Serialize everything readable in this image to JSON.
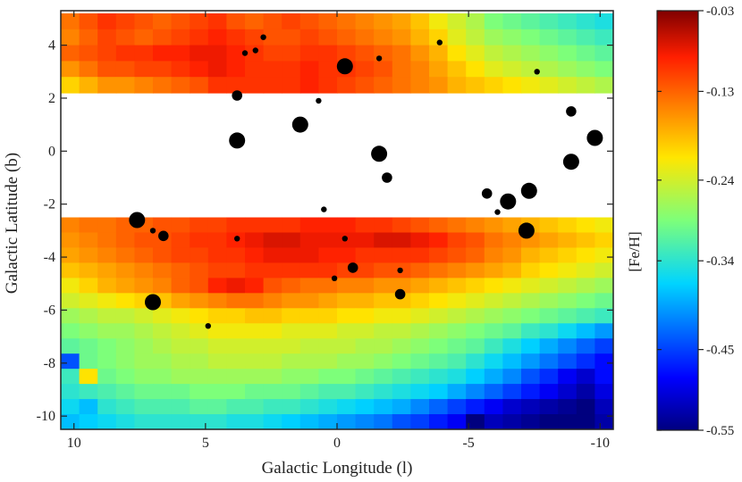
{
  "chart_data": {
    "type": "heatmap",
    "title": "",
    "xlabel": "Galactic Longitude (l)",
    "ylabel": "Galactic Latitude (b)",
    "xlim": [
      10.5,
      -10.5
    ],
    "ylim": [
      -10.5,
      5.3
    ],
    "x_ticks": [
      10,
      5,
      0,
      -5,
      -10
    ],
    "y_ticks": [
      4,
      2,
      0,
      -2,
      -4,
      -6,
      -8,
      -10
    ],
    "grid": false,
    "colorbar": {
      "label": "[Fe/H]",
      "range": [
        -0.55,
        -0.03
      ],
      "ticks": [
        "-0.03",
        "-0.13",
        "-0.24",
        "-0.34",
        "-0.45",
        "-0.55"
      ]
    },
    "heatmap": {
      "cell_size_deg": 0.7,
      "l_start": 10.5,
      "b_top": 5.2,
      "b_bottom": -10.5,
      "masked_b_range": [
        -2.5,
        2.2
      ],
      "upper_rows": [
        [
          -0.14,
          -0.12,
          -0.1,
          -0.11,
          -0.12,
          -0.13,
          -0.12,
          -0.11,
          -0.1,
          -0.12,
          -0.13,
          -0.12,
          -0.11,
          -0.12,
          -0.13,
          -0.14,
          -0.15,
          -0.16,
          -0.17,
          -0.19,
          -0.22,
          -0.24,
          -0.26,
          -0.29,
          -0.3,
          -0.31,
          -0.32,
          -0.33,
          -0.34,
          -0.35
        ],
        [
          -0.15,
          -0.13,
          -0.11,
          -0.12,
          -0.13,
          -0.12,
          -0.11,
          -0.1,
          -0.09,
          -0.1,
          -0.11,
          -0.12,
          -0.12,
          -0.11,
          -0.12,
          -0.13,
          -0.14,
          -0.15,
          -0.16,
          -0.18,
          -0.2,
          -0.23,
          -0.25,
          -0.27,
          -0.28,
          -0.29,
          -0.3,
          -0.31,
          -0.32,
          -0.33
        ],
        [
          -0.13,
          -0.12,
          -0.11,
          -0.1,
          -0.1,
          -0.09,
          -0.09,
          -0.08,
          -0.08,
          -0.09,
          -0.1,
          -0.11,
          -0.11,
          -0.1,
          -0.1,
          -0.11,
          -0.12,
          -0.13,
          -0.14,
          -0.16,
          -0.18,
          -0.21,
          -0.23,
          -0.25,
          -0.26,
          -0.27,
          -0.28,
          -0.29,
          -0.3,
          -0.31
        ],
        [
          -0.16,
          -0.14,
          -0.12,
          -0.12,
          -0.11,
          -0.11,
          -0.1,
          -0.09,
          -0.08,
          -0.09,
          -0.1,
          -0.1,
          -0.1,
          -0.09,
          -0.1,
          -0.1,
          -0.11,
          -0.12,
          -0.14,
          -0.15,
          -0.17,
          -0.19,
          -0.21,
          -0.23,
          -0.24,
          -0.25,
          -0.26,
          -0.27,
          -0.28,
          -0.29
        ],
        [
          -0.2,
          -0.18,
          -0.16,
          -0.16,
          -0.15,
          -0.14,
          -0.13,
          -0.12,
          -0.1,
          -0.1,
          -0.1,
          -0.1,
          -0.1,
          -0.09,
          -0.1,
          -0.11,
          -0.12,
          -0.13,
          -0.14,
          -0.15,
          -0.16,
          -0.18,
          -0.19,
          -0.2,
          -0.21,
          -0.22,
          -0.23,
          -0.24,
          -0.25,
          -0.26
        ]
      ],
      "lower_rows": [
        [
          -0.15,
          -0.14,
          -0.14,
          -0.13,
          -0.13,
          -0.12,
          -0.12,
          -0.11,
          -0.11,
          -0.1,
          -0.1,
          -0.1,
          -0.1,
          -0.09,
          -0.09,
          -0.09,
          -0.1,
          -0.1,
          -0.11,
          -0.12,
          -0.13,
          -0.14,
          -0.15,
          -0.16,
          -0.17,
          -0.18,
          -0.19,
          -0.2,
          -0.21,
          -0.22
        ],
        [
          -0.16,
          -0.15,
          -0.14,
          -0.13,
          -0.12,
          -0.12,
          -0.11,
          -0.1,
          -0.1,
          -0.09,
          -0.08,
          -0.07,
          -0.07,
          -0.08,
          -0.08,
          -0.08,
          -0.08,
          -0.07,
          -0.07,
          -0.08,
          -0.09,
          -0.11,
          -0.12,
          -0.14,
          -0.15,
          -0.16,
          -0.17,
          -0.18,
          -0.19,
          -0.2
        ],
        [
          -0.17,
          -0.16,
          -0.15,
          -0.14,
          -0.13,
          -0.12,
          -0.11,
          -0.11,
          -0.1,
          -0.1,
          -0.09,
          -0.08,
          -0.08,
          -0.08,
          -0.09,
          -0.09,
          -0.1,
          -0.1,
          -0.1,
          -0.1,
          -0.11,
          -0.12,
          -0.13,
          -0.15,
          -0.16,
          -0.18,
          -0.19,
          -0.2,
          -0.21,
          -0.22
        ],
        [
          -0.19,
          -0.18,
          -0.17,
          -0.16,
          -0.15,
          -0.14,
          -0.13,
          -0.12,
          -0.11,
          -0.11,
          -0.1,
          -0.1,
          -0.1,
          -0.1,
          -0.1,
          -0.11,
          -0.11,
          -0.12,
          -0.12,
          -0.13,
          -0.14,
          -0.15,
          -0.16,
          -0.17,
          -0.18,
          -0.2,
          -0.21,
          -0.22,
          -0.23,
          -0.24
        ],
        [
          -0.22,
          -0.2,
          -0.18,
          -0.17,
          -0.16,
          -0.15,
          -0.13,
          -0.12,
          -0.09,
          -0.08,
          -0.09,
          -0.12,
          -0.13,
          -0.14,
          -0.14,
          -0.15,
          -0.15,
          -0.16,
          -0.16,
          -0.17,
          -0.18,
          -0.19,
          -0.2,
          -0.21,
          -0.22,
          -0.23,
          -0.24,
          -0.25,
          -0.26,
          -0.27
        ],
        [
          -0.24,
          -0.23,
          -0.22,
          -0.21,
          -0.2,
          -0.19,
          -0.17,
          -0.16,
          -0.15,
          -0.14,
          -0.14,
          -0.15,
          -0.16,
          -0.16,
          -0.17,
          -0.18,
          -0.18,
          -0.19,
          -0.19,
          -0.2,
          -0.21,
          -0.22,
          -0.23,
          -0.24,
          -0.25,
          -0.26,
          -0.27,
          -0.28,
          -0.29,
          -0.3
        ],
        [
          -0.27,
          -0.26,
          -0.25,
          -0.25,
          -0.24,
          -0.23,
          -0.22,
          -0.21,
          -0.2,
          -0.2,
          -0.19,
          -0.19,
          -0.2,
          -0.2,
          -0.2,
          -0.21,
          -0.21,
          -0.22,
          -0.22,
          -0.23,
          -0.24,
          -0.25,
          -0.26,
          -0.27,
          -0.28,
          -0.29,
          -0.3,
          -0.31,
          -0.32,
          -0.33
        ],
        [
          -0.29,
          -0.28,
          -0.27,
          -0.27,
          -0.26,
          -0.25,
          -0.24,
          -0.23,
          -0.22,
          -0.22,
          -0.22,
          -0.22,
          -0.23,
          -0.23,
          -0.23,
          -0.24,
          -0.24,
          -0.25,
          -0.25,
          -0.26,
          -0.27,
          -0.28,
          -0.29,
          -0.3,
          -0.31,
          -0.33,
          -0.34,
          -0.36,
          -0.38,
          -0.4
        ],
        [
          -0.31,
          -0.3,
          -0.29,
          -0.28,
          -0.27,
          -0.26,
          -0.25,
          -0.25,
          -0.24,
          -0.24,
          -0.24,
          -0.24,
          -0.24,
          -0.25,
          -0.25,
          -0.25,
          -0.26,
          -0.26,
          -0.27,
          -0.28,
          -0.29,
          -0.3,
          -0.31,
          -0.33,
          -0.35,
          -0.37,
          -0.39,
          -0.41,
          -0.43,
          -0.45
        ],
        [
          -0.44,
          -0.3,
          -0.29,
          -0.28,
          -0.27,
          -0.27,
          -0.26,
          -0.26,
          -0.25,
          -0.25,
          -0.25,
          -0.25,
          -0.26,
          -0.26,
          -0.26,
          -0.27,
          -0.27,
          -0.28,
          -0.29,
          -0.3,
          -0.31,
          -0.32,
          -0.34,
          -0.36,
          -0.38,
          -0.4,
          -0.42,
          -0.44,
          -0.46,
          -0.48
        ],
        [
          -0.33,
          -0.21,
          -0.3,
          -0.29,
          -0.28,
          -0.28,
          -0.27,
          -0.27,
          -0.27,
          -0.27,
          -0.27,
          -0.27,
          -0.28,
          -0.28,
          -0.29,
          -0.29,
          -0.3,
          -0.31,
          -0.32,
          -0.33,
          -0.34,
          -0.35,
          -0.37,
          -0.39,
          -0.41,
          -0.44,
          -0.46,
          -0.49,
          -0.51,
          -0.48
        ],
        [
          -0.34,
          -0.33,
          -0.32,
          -0.31,
          -0.3,
          -0.3,
          -0.3,
          -0.29,
          -0.29,
          -0.29,
          -0.3,
          -0.3,
          -0.3,
          -0.31,
          -0.32,
          -0.32,
          -0.33,
          -0.34,
          -0.35,
          -0.36,
          -0.37,
          -0.39,
          -0.41,
          -0.43,
          -0.45,
          -0.47,
          -0.49,
          -0.51,
          -0.53,
          -0.5
        ],
        [
          -0.36,
          -0.38,
          -0.34,
          -0.33,
          -0.32,
          -0.32,
          -0.32,
          -0.31,
          -0.31,
          -0.32,
          -0.32,
          -0.33,
          -0.33,
          -0.34,
          -0.35,
          -0.36,
          -0.37,
          -0.38,
          -0.39,
          -0.41,
          -0.43,
          -0.45,
          -0.47,
          -0.49,
          -0.51,
          -0.52,
          -0.53,
          -0.54,
          -0.55,
          -0.52
        ],
        [
          -0.38,
          -0.37,
          -0.36,
          -0.35,
          -0.34,
          -0.34,
          -0.34,
          -0.34,
          -0.34,
          -0.35,
          -0.35,
          -0.36,
          -0.37,
          -0.38,
          -0.39,
          -0.4,
          -0.41,
          -0.42,
          -0.44,
          -0.45,
          -0.47,
          -0.49,
          -0.55,
          -0.52,
          -0.53,
          -0.54,
          -0.55,
          -0.55,
          -0.55,
          -0.53
        ]
      ]
    },
    "points": [
      {
        "l": 2.8,
        "b": 4.3,
        "size": "small"
      },
      {
        "l": 3.5,
        "b": 3.7,
        "size": "small"
      },
      {
        "l": 3.1,
        "b": 3.8,
        "size": "small"
      },
      {
        "l": -0.3,
        "b": 3.2,
        "size": "large"
      },
      {
        "l": -1.6,
        "b": 3.5,
        "size": "small"
      },
      {
        "l": -3.9,
        "b": 4.1,
        "size": "small"
      },
      {
        "l": -7.6,
        "b": 3.0,
        "size": "small"
      },
      {
        "l": 3.8,
        "b": 2.1,
        "size": "medium"
      },
      {
        "l": 0.7,
        "b": 1.9,
        "size": "small"
      },
      {
        "l": 1.4,
        "b": 1.0,
        "size": "large"
      },
      {
        "l": 3.8,
        "b": 0.4,
        "size": "large"
      },
      {
        "l": -1.6,
        "b": -0.1,
        "size": "large"
      },
      {
        "l": -8.9,
        "b": 1.5,
        "size": "medium"
      },
      {
        "l": -9.8,
        "b": 0.5,
        "size": "large"
      },
      {
        "l": -8.9,
        "b": -0.4,
        "size": "large"
      },
      {
        "l": -1.9,
        "b": -1.0,
        "size": "medium"
      },
      {
        "l": -5.7,
        "b": -1.6,
        "size": "medium"
      },
      {
        "l": -7.3,
        "b": -1.5,
        "size": "large"
      },
      {
        "l": -6.5,
        "b": -1.9,
        "size": "large"
      },
      {
        "l": -6.1,
        "b": -2.3,
        "size": "small"
      },
      {
        "l": 0.5,
        "b": -2.2,
        "size": "small"
      },
      {
        "l": 7.6,
        "b": -2.6,
        "size": "large"
      },
      {
        "l": 7.0,
        "b": -3.0,
        "size": "small"
      },
      {
        "l": 6.6,
        "b": -3.2,
        "size": "medium"
      },
      {
        "l": 3.8,
        "b": -3.3,
        "size": "small"
      },
      {
        "l": -0.3,
        "b": -3.3,
        "size": "small"
      },
      {
        "l": -7.2,
        "b": -3.0,
        "size": "large"
      },
      {
        "l": -0.6,
        "b": -4.4,
        "size": "medium"
      },
      {
        "l": -2.4,
        "b": -4.5,
        "size": "small"
      },
      {
        "l": 0.1,
        "b": -4.8,
        "size": "small"
      },
      {
        "l": -2.4,
        "b": -5.4,
        "size": "medium"
      },
      {
        "l": 7.0,
        "b": -5.7,
        "size": "large"
      },
      {
        "l": 4.9,
        "b": -6.6,
        "size": "small"
      }
    ]
  }
}
